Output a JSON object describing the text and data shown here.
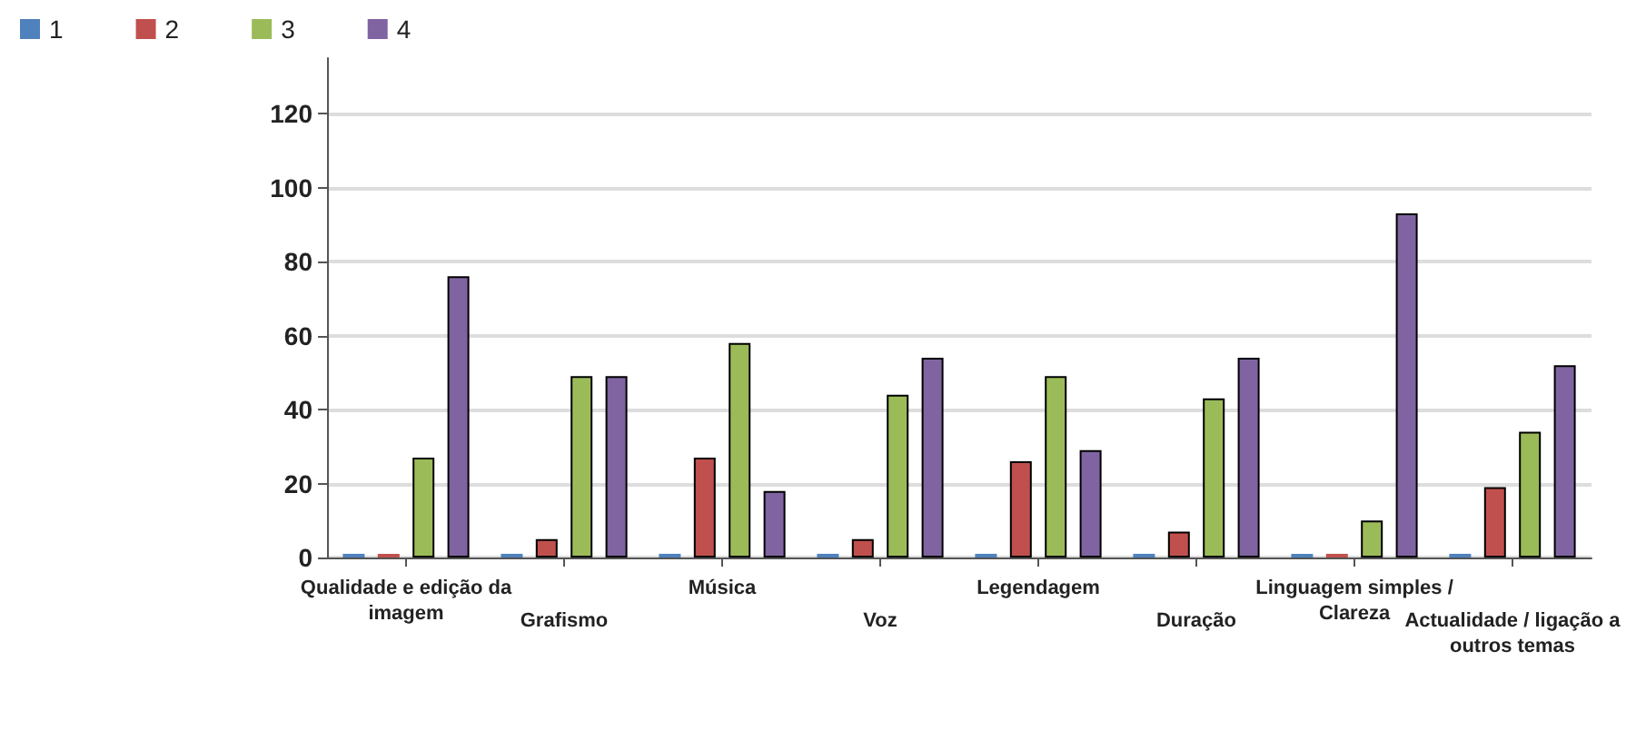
{
  "chart_data": {
    "type": "bar",
    "categories": [
      "Qualidade e edição da\nimagem",
      "Grafismo",
      "Música",
      "Voz",
      "Legendagem",
      "Duração",
      "Linguagem simples /\nClareza",
      "Actualidade / ligação a\noutros temas"
    ],
    "series": [
      {
        "name": "1",
        "color": "#4f81bd",
        "values": [
          1,
          1,
          1,
          1,
          1,
          1,
          0,
          1
        ]
      },
      {
        "name": "2",
        "color": "#c0504d",
        "values": [
          0,
          5,
          27,
          5,
          26,
          7,
          1,
          19
        ]
      },
      {
        "name": "3",
        "color": "#9bbb59",
        "values": [
          27,
          49,
          58,
          44,
          49,
          43,
          10,
          34
        ]
      },
      {
        "name": "4",
        "color": "#8064a2",
        "values": [
          76,
          49,
          18,
          54,
          29,
          54,
          93,
          52
        ]
      }
    ],
    "ylim": [
      0,
      135
    ],
    "yticks": [
      0,
      20,
      40,
      60,
      80,
      100,
      120
    ],
    "grid": "y",
    "legend": "top left"
  }
}
